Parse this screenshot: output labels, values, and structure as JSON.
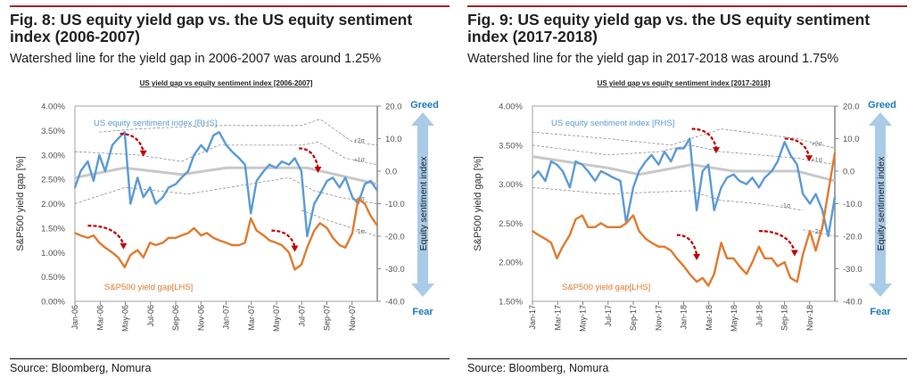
{
  "figures": [
    {
      "title": "Fig. 8: US equity yield gap vs. the US equity sentiment index (2006-2007)",
      "subtitle": "Watershed line for the yield gap in 2006-2007 was around 1.25%",
      "source": "Source: Bloomberg, Nomura"
    },
    {
      "title": "Fig. 9: US equity yield gap vs. the US equity sentiment index (2017-2018)",
      "subtitle": "Watershed line for the yield gap in 2017-2018 was around 1.75%",
      "source": "Source: Bloomberg, Nomura"
    }
  ],
  "colors": {
    "sentiment": "#5b9bd5",
    "yield_gap": "#e07b2e",
    "mean": "#c8c8c8",
    "band": "#808080",
    "arrow": "#c00000",
    "greed_fear_arrow": "#a9cbe8",
    "greed_fear_text": "#1f7ab8"
  },
  "chart_data": [
    {
      "type": "line",
      "title": "US yield gap vs equity sentiment index [2006-2007]",
      "ylabel": "S&P500 yield gap [%]",
      "y2label": "Equity sentiment index",
      "ylim": [
        0,
        4
      ],
      "y2lim": [
        -40,
        20
      ],
      "xlim": [
        "2006-01-01",
        "2007-12-31"
      ],
      "yticks": [
        "0.00%",
        "0.50%",
        "1.00%",
        "1.50%",
        "2.00%",
        "2.50%",
        "3.00%",
        "3.50%",
        "4.00%"
      ],
      "y2ticks": [
        "-40.0",
        "-30.0",
        "-20.0",
        "-10.0",
        "0.0",
        "10.0",
        "20.0"
      ],
      "xticks": [
        "Jan-06",
        "Mar-06",
        "May-06",
        "Jul-06",
        "Sep-06",
        "Nov-06",
        "Jan-07",
        "Mar-07",
        "May-07",
        "Jul-07",
        "Sep-07",
        "Nov-07"
      ],
      "greed_label": "Greed",
      "fear_label": "Fear",
      "grid": false,
      "x": [
        "2006-01-01",
        "2006-01-15",
        "2006-02-01",
        "2006-02-15",
        "2006-03-01",
        "2006-03-15",
        "2006-04-01",
        "2006-04-15",
        "2006-05-01",
        "2006-05-15",
        "2006-06-01",
        "2006-06-15",
        "2006-07-01",
        "2006-07-15",
        "2006-08-01",
        "2006-08-15",
        "2006-09-01",
        "2006-09-15",
        "2006-10-01",
        "2006-10-15",
        "2006-11-01",
        "2006-11-15",
        "2006-12-01",
        "2006-12-15",
        "2007-01-01",
        "2007-01-15",
        "2007-02-01",
        "2007-02-15",
        "2007-03-01",
        "2007-03-15",
        "2007-04-01",
        "2007-04-15",
        "2007-05-01",
        "2007-05-15",
        "2007-06-01",
        "2007-06-15",
        "2007-07-01",
        "2007-07-15",
        "2007-08-01",
        "2007-08-15",
        "2007-09-01",
        "2007-09-15",
        "2007-10-01",
        "2007-10-15",
        "2007-11-01",
        "2007-11-15",
        "2007-12-01",
        "2007-12-15",
        "2007-12-31"
      ],
      "series": [
        {
          "name": "US equity sentiment index [RHS]",
          "axis": "right",
          "values": [
            -5,
            0,
            3,
            -3,
            5,
            0,
            8,
            10,
            12,
            -10,
            -2,
            -8,
            -5,
            -10,
            -8,
            -5,
            -4,
            -2,
            0,
            5,
            8,
            6,
            11,
            12,
            8,
            6,
            4,
            2,
            -13,
            -3,
            0,
            2,
            1,
            3,
            2,
            4,
            0,
            -20,
            -10,
            -7,
            -3,
            -2,
            -5,
            -2,
            -8,
            -10,
            -4,
            -3,
            -6
          ]
        },
        {
          "name": "S&P500 yield gap[LHS]",
          "axis": "left",
          "values": [
            1.4,
            1.35,
            1.3,
            1.35,
            1.2,
            1.1,
            1.0,
            0.9,
            0.7,
            0.95,
            1.05,
            0.9,
            1.2,
            1.15,
            1.2,
            1.3,
            1.3,
            1.35,
            1.4,
            1.5,
            1.35,
            1.4,
            1.3,
            1.25,
            1.2,
            1.15,
            1.15,
            1.2,
            1.7,
            1.45,
            1.35,
            1.25,
            1.2,
            1.15,
            1.0,
            0.65,
            0.75,
            1.1,
            1.45,
            1.6,
            1.5,
            1.3,
            1.15,
            1.1,
            1.4,
            2.1,
            2.0,
            1.75,
            1.55
          ]
        }
      ],
      "bands": [
        {
          "label": "+2σ",
          "x": [
            "2006-03-01",
            "2006-06-01",
            "2006-12-01",
            "2007-07-01",
            "2007-08-15",
            "2007-11-01",
            "2007-12-31"
          ],
          "values": [
            12,
            13,
            14,
            14,
            16,
            9,
            8
          ]
        },
        {
          "label": "+1σ",
          "x": [
            "2006-01-01",
            "2006-06-01",
            "2006-09-15",
            "2006-12-15",
            "2007-07-01",
            "2007-08-10",
            "2007-10-15",
            "2007-12-31"
          ],
          "values": [
            6,
            5,
            3,
            8,
            8,
            9,
            4,
            2
          ]
        },
        {
          "label": "",
          "mean": true,
          "x": [
            "2006-01-01",
            "2006-05-01",
            "2006-09-15",
            "2007-01-01",
            "2007-07-15",
            "2007-12-31"
          ],
          "values": [
            -2,
            1,
            -1,
            1,
            1,
            -4
          ]
        },
        {
          "label": "-1σ",
          "x": [
            "2006-01-01",
            "2006-05-01",
            "2006-10-01",
            "2007-06-01",
            "2007-08-01",
            "2007-10-01",
            "2007-12-31"
          ],
          "values": [
            -10,
            -5,
            -7,
            -2,
            -6,
            -8,
            -10
          ]
        },
        {
          "label": "-1σ",
          "x": [
            "2007-07-01",
            "2007-09-01",
            "2007-12-31"
          ],
          "values": [
            -12,
            -15,
            -20
          ]
        }
      ],
      "annotations": [
        {
          "axis": "right",
          "from": [
            "2006-04-20",
            11.5
          ],
          "to": [
            "2006-06-15",
            5
          ]
        },
        {
          "axis": "right",
          "from": [
            "2007-06-25",
            7
          ],
          "to": [
            "2007-08-10",
            0
          ]
        },
        {
          "axis": "left",
          "from": [
            "2006-02-01",
            1.55
          ],
          "to": [
            "2006-04-28",
            1.1
          ]
        },
        {
          "axis": "left",
          "from": [
            "2007-04-20",
            1.45
          ],
          "to": [
            "2007-06-15",
            1.05
          ]
        }
      ]
    },
    {
      "type": "line",
      "title": "US yield gap vs equity sentiment index [2017-2018]",
      "ylabel": "S&P500 yield gap [%]",
      "y2label": "Equity sentiment index",
      "ylim": [
        1.5,
        4
      ],
      "y2lim": [
        -40,
        20
      ],
      "xlim": [
        "2017-01-01",
        "2018-12-31"
      ],
      "yticks": [
        "1.50%",
        "2.00%",
        "2.50%",
        "3.00%",
        "3.50%",
        "4.00%"
      ],
      "y2ticks": [
        "-40.0",
        "-30.0",
        "-20.0",
        "-10.0",
        "0.0",
        "10.0",
        "20.0"
      ],
      "xticks": [
        "Jan-17",
        "Mar-17",
        "May-17",
        "Jul-17",
        "Sep-17",
        "Nov-17",
        "Jan-18",
        "Mar-18",
        "May-18",
        "Jul-18",
        "Sep-18",
        "Nov-18"
      ],
      "greed_label": "Greed",
      "fear_label": "Fear",
      "grid": false,
      "x": [
        "2017-01-01",
        "2017-01-15",
        "2017-02-01",
        "2017-02-15",
        "2017-03-01",
        "2017-03-15",
        "2017-04-01",
        "2017-04-15",
        "2017-05-01",
        "2017-05-15",
        "2017-06-01",
        "2017-06-15",
        "2017-07-01",
        "2017-07-15",
        "2017-08-01",
        "2017-08-15",
        "2017-09-01",
        "2017-09-15",
        "2017-10-01",
        "2017-10-15",
        "2017-11-01",
        "2017-11-15",
        "2017-12-01",
        "2017-12-15",
        "2018-01-01",
        "2018-01-15",
        "2018-02-01",
        "2018-02-15",
        "2018-03-01",
        "2018-03-15",
        "2018-04-01",
        "2018-04-15",
        "2018-05-01",
        "2018-05-15",
        "2018-06-01",
        "2018-06-15",
        "2018-07-01",
        "2018-07-15",
        "2018-08-01",
        "2018-08-15",
        "2018-09-01",
        "2018-09-15",
        "2018-10-01",
        "2018-10-15",
        "2018-11-01",
        "2018-11-15",
        "2018-12-01",
        "2018-12-15",
        "2018-12-31"
      ],
      "series": [
        {
          "name": "US equity sentiment index [RHS]",
          "axis": "right",
          "values": [
            -2,
            0,
            -3,
            3,
            2,
            0,
            -5,
            3,
            2,
            0,
            -3,
            0,
            -1,
            -2,
            -3,
            -16,
            -5,
            0,
            3,
            5,
            2,
            6,
            3,
            7,
            7,
            10,
            -12,
            0,
            2,
            -12,
            -5,
            -2,
            -1,
            -3,
            -4,
            -2,
            -5,
            -2,
            0,
            3,
            9,
            5,
            2,
            -7,
            -10,
            -7,
            -12,
            -20,
            -8
          ]
        },
        {
          "name": "S&P500 yield gap[LHS]",
          "axis": "left",
          "values": [
            2.4,
            2.35,
            2.3,
            2.25,
            2.05,
            2.2,
            2.35,
            2.55,
            2.6,
            2.45,
            2.45,
            2.5,
            2.45,
            2.45,
            2.45,
            2.5,
            2.6,
            2.4,
            2.3,
            2.25,
            2.2,
            2.2,
            2.15,
            2.05,
            1.95,
            1.85,
            1.75,
            1.8,
            1.7,
            1.85,
            2.25,
            2.05,
            2.05,
            1.95,
            1.85,
            2.0,
            2.2,
            2.05,
            2.05,
            1.95,
            2.0,
            1.8,
            1.75,
            2.1,
            2.4,
            2.15,
            2.45,
            2.9,
            3.4
          ]
        }
      ],
      "bands": [
        {
          "label": "+2σ",
          "x": [
            "2017-01-01",
            "2017-07-01",
            "2017-12-01",
            "2018-04-01",
            "2018-10-01",
            "2018-12-31"
          ],
          "values": [
            12,
            10,
            8,
            13,
            10,
            7
          ]
        },
        {
          "label": "+1σ",
          "x": [
            "2017-01-01",
            "2017-07-01",
            "2017-11-01",
            "2018-01-15",
            "2018-04-01",
            "2018-10-01",
            "2018-12-31"
          ],
          "values": [
            8,
            5,
            6,
            8,
            6,
            4,
            2
          ]
        },
        {
          "label": "",
          "mean": true,
          "x": [
            "2017-01-01",
            "2017-07-01",
            "2017-09-15",
            "2018-01-20",
            "2018-05-01",
            "2018-10-01",
            "2018-12-31"
          ],
          "values": [
            4.5,
            1,
            -1,
            2,
            0,
            0,
            -3
          ]
        },
        {
          "label": "-1σ",
          "x": [
            "2017-01-01",
            "2017-07-01",
            "2018-01-15",
            "2018-04-01",
            "2018-07-01",
            "2018-10-15"
          ],
          "values": [
            -5,
            -7,
            -6,
            -9,
            -10,
            -12
          ]
        },
        {
          "label": "-2σ",
          "x": [
            "2018-10-15",
            "2018-12-31"
          ],
          "values": [
            -18,
            -20
          ]
        }
      ],
      "annotations": [
        {
          "axis": "right",
          "from": [
            "2018-01-20",
            13
          ],
          "to": [
            "2018-03-20",
            6
          ]
        },
        {
          "axis": "right",
          "from": [
            "2018-09-01",
            10
          ],
          "to": [
            "2018-10-30",
            3.5
          ]
        },
        {
          "axis": "left",
          "from": [
            "2017-12-15",
            2.35
          ],
          "to": [
            "2018-02-01",
            2.05
          ]
        },
        {
          "axis": "left",
          "from": [
            "2018-07-01",
            2.4
          ],
          "to": [
            "2018-09-25",
            2.1
          ]
        }
      ]
    }
  ]
}
